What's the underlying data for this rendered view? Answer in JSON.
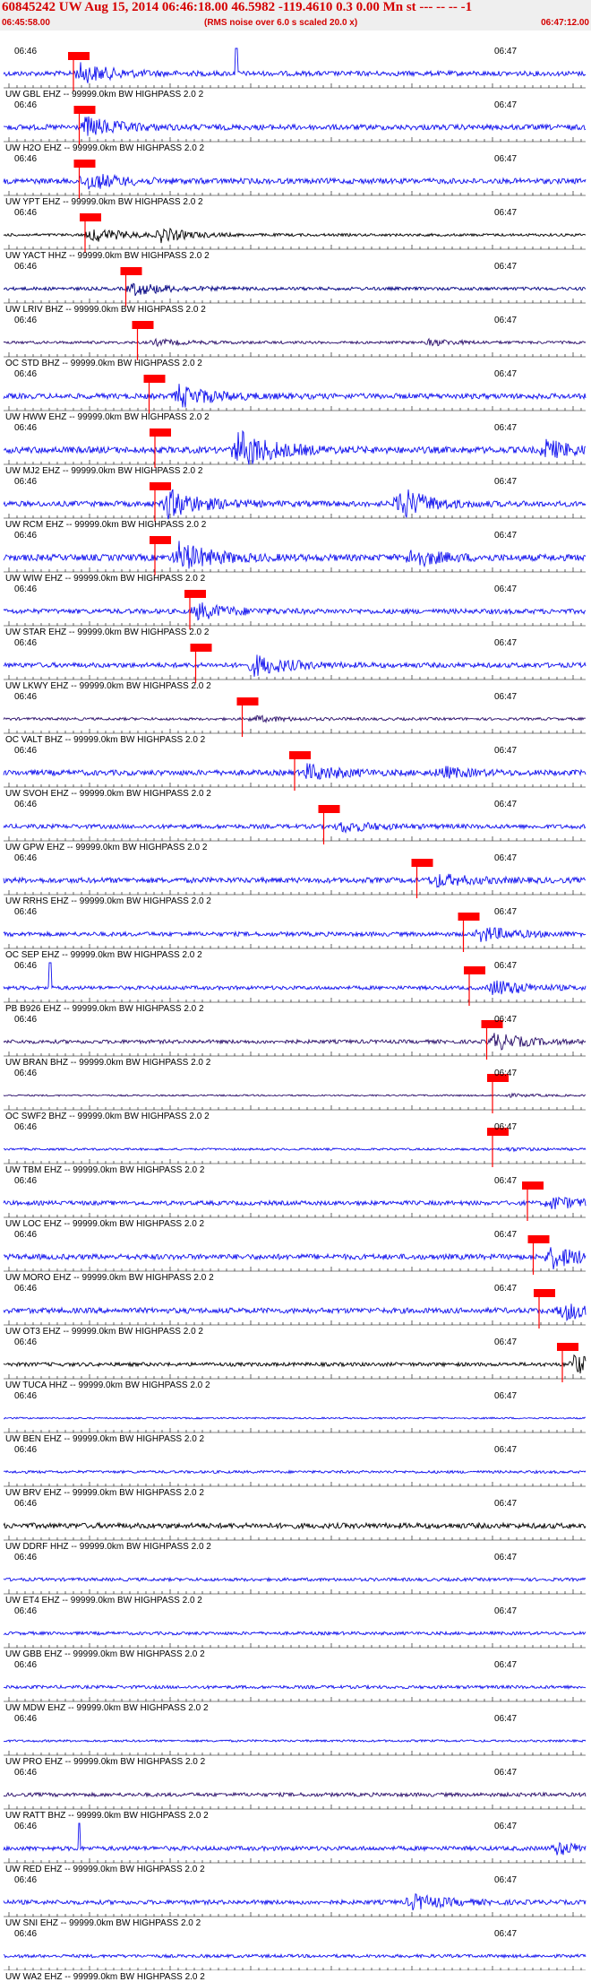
{
  "header": {
    "title": "60845242 UW Aug 15, 2014 06:46:18.00   46.5982 -119.4610  0.3 0.00 Mn st --- -- --  -1",
    "start_time": "06:45:58.00",
    "scale_note": "(RMS noise over 6.0 s scaled 20.0 x)",
    "end_time": "06:47:12.00"
  },
  "axis": {
    "minute_labels": [
      "06:46",
      "06:47"
    ]
  },
  "colors": {
    "header_bg": "#efefef",
    "title": "#d40000",
    "pick": "#ff0000"
  },
  "traces": [
    {
      "label": "UW GBL EHZ -- 99999.0km BW  HIGHPASS  2.0  2",
      "color": "#1010ee",
      "amp": 0.45,
      "pick": 0.12,
      "burst": 0.13,
      "burstAmp": 1.8,
      "spike": 0.4
    },
    {
      "label": "UW H2O EHZ -- 99999.0km BW  HIGHPASS  2.0  2",
      "color": "#1010ee",
      "amp": 0.5,
      "pick": 0.13,
      "burst": 0.14,
      "burstAmp": 1.6
    },
    {
      "label": "UW YPT EHZ -- 99999.0km BW  HIGHPASS  2.0  2",
      "color": "#1010ee",
      "amp": 0.5,
      "pick": 0.13,
      "burst": 0.14,
      "burstAmp": 1.4
    },
    {
      "label": "UW YACT HHZ -- 99999.0km BW  HIGHPASS  2.0  2",
      "color": "#000000",
      "amp": 0.25,
      "pick": 0.14,
      "burst": 0.15,
      "burstAmp": 2.4,
      "burst2": 0.27,
      "burst2Amp": 2.2
    },
    {
      "label": "UW LRIV BHZ -- 99999.0km BW  HIGHPASS  2.0  2",
      "color": "#000080",
      "amp": 0.3,
      "pick": 0.21,
      "burst": 0.22,
      "burstAmp": 1.8
    },
    {
      "label": "OC STD BHZ -- 99999.0km BW  HIGHPASS  2.0  2",
      "color": "#2a0e6a",
      "amp": 0.25,
      "pick": 0.23,
      "burst": 0.26,
      "burstAmp": 0.9,
      "burst2": 0.73,
      "burst2Amp": 1.0
    },
    {
      "label": "UW HWW EHZ -- 99999.0km BW  HIGHPASS  2.0  2",
      "color": "#1010ee",
      "amp": 0.5,
      "pick": 0.25,
      "burst": 0.3,
      "burstAmp": 1.8
    },
    {
      "label": "UW MJ2 EHZ -- 99999.0km BW  HIGHPASS  2.0  2",
      "color": "#1010ee",
      "amp": 0.6,
      "pick": 0.26,
      "burst": 0.4,
      "burstAmp": 2.8,
      "burst2": 0.93,
      "burst2Amp": 1.3
    },
    {
      "label": "UW RCM EHZ -- 99999.0km BW  HIGHPASS  2.0  2",
      "color": "#1010ee",
      "amp": 0.5,
      "pick": 0.26,
      "burst": 0.28,
      "burstAmp": 2.4,
      "burst2": 0.68,
      "burst2Amp": 2.8
    },
    {
      "label": "UW WIW EHZ -- 99999.0km BW  HIGHPASS  2.0  2",
      "color": "#1010ee",
      "amp": 0.6,
      "pick": 0.26,
      "burst": 0.3,
      "burstAmp": 2.0,
      "burst2": 0.7,
      "burst2Amp": 1.3
    },
    {
      "label": "UW STAR EHZ -- 99999.0km BW  HIGHPASS  2.0  2",
      "color": "#1010ee",
      "amp": 0.45,
      "pick": 0.32,
      "burst": 0.33,
      "burstAmp": 1.5
    },
    {
      "label": "UW LKWY EHZ -- 99999.0km BW  HIGHPASS  2.0  2",
      "color": "#1010ee",
      "amp": 0.45,
      "pick": 0.33,
      "burst": 0.43,
      "burstAmp": 1.9
    },
    {
      "label": "OC VALT BHZ -- 99999.0km BW  HIGHPASS  2.0  2",
      "color": "#2a0e6a",
      "amp": 0.25,
      "pick": 0.41,
      "burst": 0.43,
      "burstAmp": 0.9
    },
    {
      "label": "UW SVOH EHZ -- 99999.0km BW  HIGHPASS  2.0  2",
      "color": "#1010ee",
      "amp": 0.5,
      "pick": 0.5,
      "burst": 0.52,
      "burstAmp": 1.3,
      "burst2": 0.75,
      "burst2Amp": 0.9
    },
    {
      "label": "UW GPW EHZ -- 99999.0km BW  HIGHPASS  2.0  2",
      "color": "#1010ee",
      "amp": 0.4,
      "pick": 0.55,
      "burst": 0.58,
      "burstAmp": 1.1
    },
    {
      "label": "UW RRHS EHZ -- 99999.0km BW  HIGHPASS  2.0  2",
      "color": "#1010ee",
      "amp": 0.5,
      "pick": 0.71,
      "burst": 0.74,
      "burstAmp": 1.0
    },
    {
      "label": "OC SEP EHZ -- 99999.0km BW  HIGHPASS  2.0  2",
      "color": "#1010ee",
      "amp": 0.4,
      "pick": 0.79,
      "burst": 0.82,
      "burstAmp": 1.5
    },
    {
      "label": "PB B926 EHZ -- 99999.0km BW  HIGHPASS  2.0  2",
      "color": "#1010ee",
      "amp": 0.35,
      "pick": 0.8,
      "burst": 0.84,
      "burstAmp": 2.0,
      "spike": 0.08
    },
    {
      "label": "UW BRAN BHZ -- 99999.0km BW  HIGHPASS  2.0  2",
      "color": "#2a0e6a",
      "amp": 0.35,
      "pick": 0.83,
      "burst": 0.84,
      "burstAmp": 2.0
    },
    {
      "label": "OC SWF2 BHZ -- 99999.0km BW  HIGHPASS  2.0  2",
      "color": "#2a0e6a",
      "amp": 0.15,
      "pick": 0.84,
      "burst": 0.86,
      "burstAmp": 0.8
    },
    {
      "label": "UW TBM EHZ -- 99999.0km BW  HIGHPASS  2.0  2",
      "color": "#1010ee",
      "amp": 0.2,
      "pick": 0.84,
      "burst": 0.86,
      "burstAmp": 0.6
    },
    {
      "label": "UW LOC EHZ -- 99999.0km BW  HIGHPASS  2.0  2",
      "color": "#1010ee",
      "amp": 0.4,
      "pick": 0.9,
      "burst": 0.94,
      "burstAmp": 1.3
    },
    {
      "label": "UW MORO EHZ -- 99999.0km BW  HIGHPASS  2.0  2",
      "color": "#1010ee",
      "amp": 0.5,
      "pick": 0.91,
      "burst": 0.94,
      "burstAmp": 1.8
    },
    {
      "label": "UW OT3 EHZ -- 99999.0km BW  HIGHPASS  2.0  2",
      "color": "#1010ee",
      "amp": 0.5,
      "pick": 0.92,
      "burst": 0.96,
      "burstAmp": 1.5
    },
    {
      "label": "UW TUCA HHZ -- 99999.0km BW  HIGHPASS  2.0  2",
      "color": "#000000",
      "amp": 0.35,
      "pick": 0.96,
      "burst": 0.98,
      "burstAmp": 2.2
    },
    {
      "label": "UW BEN EHZ -- 99999.0km BW  HIGHPASS  2.0  2",
      "color": "#1010ee",
      "amp": 0.15
    },
    {
      "label": "UW BRV EHZ -- 99999.0km BW  HIGHPASS  2.0  2",
      "color": "#1010ee",
      "amp": 0.25
    },
    {
      "label": "UW DDRF HHZ -- 99999.0km BW  HIGHPASS  2.0  2",
      "color": "#000000",
      "amp": 0.5
    },
    {
      "label": "UW ET4 EHZ -- 99999.0km BW  HIGHPASS  2.0  2",
      "color": "#1010ee",
      "amp": 0.3
    },
    {
      "label": "UW GBB EHZ -- 99999.0km BW  HIGHPASS  2.0  2",
      "color": "#1010ee",
      "amp": 0.3
    },
    {
      "label": "UW MDW EHZ -- 99999.0km BW  HIGHPASS  2.0  2",
      "color": "#1010ee",
      "amp": 0.3
    },
    {
      "label": "UW PRO EHZ -- 99999.0km BW  HIGHPASS  2.0  2",
      "color": "#1010ee",
      "amp": 0.2
    },
    {
      "label": "UW RATT BHZ -- 99999.0km BW  HIGHPASS  2.0  2",
      "color": "#2a0e6a",
      "amp": 0.35
    },
    {
      "label": "UW RED EHZ -- 99999.0km BW  HIGHPASS  2.0  2",
      "color": "#1010ee",
      "amp": 0.4,
      "burst": 0.95,
      "burstAmp": 1.2,
      "spike": 0.13
    },
    {
      "label": "UW SNI EHZ -- 99999.0km BW  HIGHPASS  2.0  2",
      "color": "#1010ee",
      "amp": 0.4,
      "burst": 0.7,
      "burstAmp": 1.6
    },
    {
      "label": "UW WA2 EHZ -- 99999.0km BW  HIGHPASS  2.0  2",
      "color": "#1010ee",
      "amp": 0.3
    }
  ]
}
